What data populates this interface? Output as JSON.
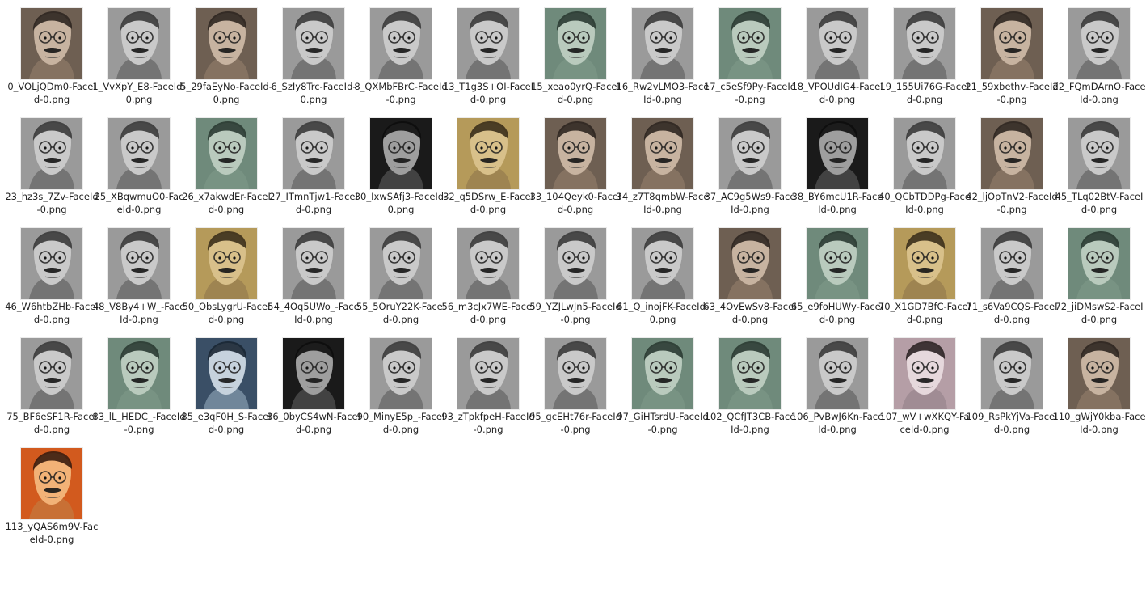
{
  "files": [
    {
      "label": "0_VOLjQDm0-FaceId-0.png",
      "tone": "sepia"
    },
    {
      "label": "1_VvXpY_E8-FaceId-0.png",
      "tone": "gray"
    },
    {
      "label": "5_29faEyNo-FaceId-0.png",
      "tone": "sepia"
    },
    {
      "label": "6_SzIy8Trc-FaceId-0.png",
      "tone": "gray"
    },
    {
      "label": "8_QXMbFBrC-FaceId-0.png",
      "tone": "gray"
    },
    {
      "label": "13_T1g3S+OI-FaceId-0.png",
      "tone": "gray"
    },
    {
      "label": "15_xeao0yrQ-FaceId-0.png",
      "tone": "green"
    },
    {
      "label": "16_Rw2vLMO3-FaceId-0.png",
      "tone": "gray"
    },
    {
      "label": "17_c5eSf9Py-FaceId-0.png",
      "tone": "green"
    },
    {
      "label": "18_VPOUdIG4-FaceId-0.png",
      "tone": "gray"
    },
    {
      "label": "19_155Ui76G-FaceId-0.png",
      "tone": "gray"
    },
    {
      "label": "21_59xbethv-FaceId-0.png",
      "tone": "sepia"
    },
    {
      "label": "22_FQmDArnO-FaceId-0.png",
      "tone": "gray"
    },
    {
      "label": "23_hz3s_7Zv-FaceId-0.png",
      "tone": "gray"
    },
    {
      "label": "25_XBqwmuO0-FaceId-0.png",
      "tone": "gray"
    },
    {
      "label": "26_x7akwdEr-FaceId-0.png",
      "tone": "green"
    },
    {
      "label": "27_ITmnTjw1-FaceId-0.png",
      "tone": "gray"
    },
    {
      "label": "30_IxwSAfj3-FaceId-0.png",
      "tone": "dark"
    },
    {
      "label": "32_q5DSrw_E-FaceId-0.png",
      "tone": "gold"
    },
    {
      "label": "33_104Qeyk0-FaceId-0.png",
      "tone": "sepia"
    },
    {
      "label": "34_z7T8qmbW-FaceId-0.png",
      "tone": "sepia"
    },
    {
      "label": "37_AC9g5Ws9-FaceId-0.png",
      "tone": "gray"
    },
    {
      "label": "38_BY6mcU1R-FaceId-0.png",
      "tone": "dark"
    },
    {
      "label": "40_QCbTDDPg-FaceId-0.png",
      "tone": "gray"
    },
    {
      "label": "42_ljOpTnV2-FaceId-0.png",
      "tone": "sepia"
    },
    {
      "label": "45_TLq02BtV-FaceId-0.png",
      "tone": "gray"
    },
    {
      "label": "46_W6htbZHb-FaceId-0.png",
      "tone": "gray"
    },
    {
      "label": "48_V8By4+W_-FaceId-0.png",
      "tone": "gray"
    },
    {
      "label": "50_ObsLygrU-FaceId-0.png",
      "tone": "gold"
    },
    {
      "label": "54_4Oq5UWo_-FaceId-0.png",
      "tone": "gray"
    },
    {
      "label": "55_5OruY22K-FaceId-0.png",
      "tone": "gray"
    },
    {
      "label": "56_m3cJx7WE-FaceId-0.png",
      "tone": "gray"
    },
    {
      "label": "59_YZJLwJn5-FaceId-0.png",
      "tone": "gray"
    },
    {
      "label": "61_Q_inojFK-FaceId-0.png",
      "tone": "gray"
    },
    {
      "label": "63_4OvEwSv8-FaceId-0.png",
      "tone": "sepia"
    },
    {
      "label": "65_e9foHUWy-FaceId-0.png",
      "tone": "green"
    },
    {
      "label": "70_X1GD7BfC-FaceId-0.png",
      "tone": "gold"
    },
    {
      "label": "71_s6Va9CQS-FaceId-0.png",
      "tone": "gray"
    },
    {
      "label": "72_jiDMswS2-FaceId-0.png",
      "tone": "green"
    },
    {
      "label": "75_BF6eSF1R-FaceId-0.png",
      "tone": "gray"
    },
    {
      "label": "83_lL_HEDC_-FaceId-0.png",
      "tone": "green"
    },
    {
      "label": "85_e3qF0H_S-FaceId-0.png",
      "tone": "blue"
    },
    {
      "label": "86_0byCS4wN-FaceId-0.png",
      "tone": "dark"
    },
    {
      "label": "90_MinyE5p_-FaceId-0.png",
      "tone": "gray"
    },
    {
      "label": "93_zTpkfpeH-FaceId-0.png",
      "tone": "gray"
    },
    {
      "label": "95_gcEHt76r-FaceId-0.png",
      "tone": "gray"
    },
    {
      "label": "97_GiHTsrdU-FaceId-0.png",
      "tone": "green"
    },
    {
      "label": "102_QCfJT3CB-FaceId-0.png",
      "tone": "green"
    },
    {
      "label": "106_PvBwJ6Kn-FaceId-0.png",
      "tone": "gray"
    },
    {
      "label": "107_wV+wXKQY-FaceId-0.png",
      "tone": "pink"
    },
    {
      "label": "109_RsPkYjVa-FaceId-0.png",
      "tone": "gray"
    },
    {
      "label": "110_gWjY0kba-FaceId-0.png",
      "tone": "sepia"
    },
    {
      "label": "113_yQAS6m9V-FaceId-0.png",
      "tone": "orange"
    }
  ],
  "tones": {
    "gray": {
      "bg": "#9a9a9a",
      "skin": "#c9c9c9",
      "hair": "#3a3a3a",
      "shade": "#6d6d6d"
    },
    "sepia": {
      "bg": "#6e5f52",
      "skin": "#c7b3a0",
      "hair": "#2e2620",
      "shade": "#8a7564"
    },
    "green": {
      "bg": "#6f8a7b",
      "skin": "#b9cabd",
      "hair": "#2a3a32",
      "shade": "#7a9485"
    },
    "gold": {
      "bg": "#b59a5a",
      "skin": "#d8c08a",
      "hair": "#3b2f1a",
      "shade": "#9a8050"
    },
    "dark": {
      "bg": "#1a1a1a",
      "skin": "#9e9e9e",
      "hair": "#0d0d0d",
      "shade": "#4a4a4a"
    },
    "blue": {
      "bg": "#3a4f66",
      "skin": "#c6d2dd",
      "hair": "#1a2633",
      "shade": "#7a8fa3"
    },
    "pink": {
      "bg": "#b59ea6",
      "skin": "#e6d8dc",
      "hair": "#2b2224",
      "shade": "#9c8890"
    },
    "orange": {
      "bg": "#d25a1e",
      "skin": "#f2b277",
      "hair": "#3a1c0e",
      "shade": "#c7743a"
    }
  }
}
